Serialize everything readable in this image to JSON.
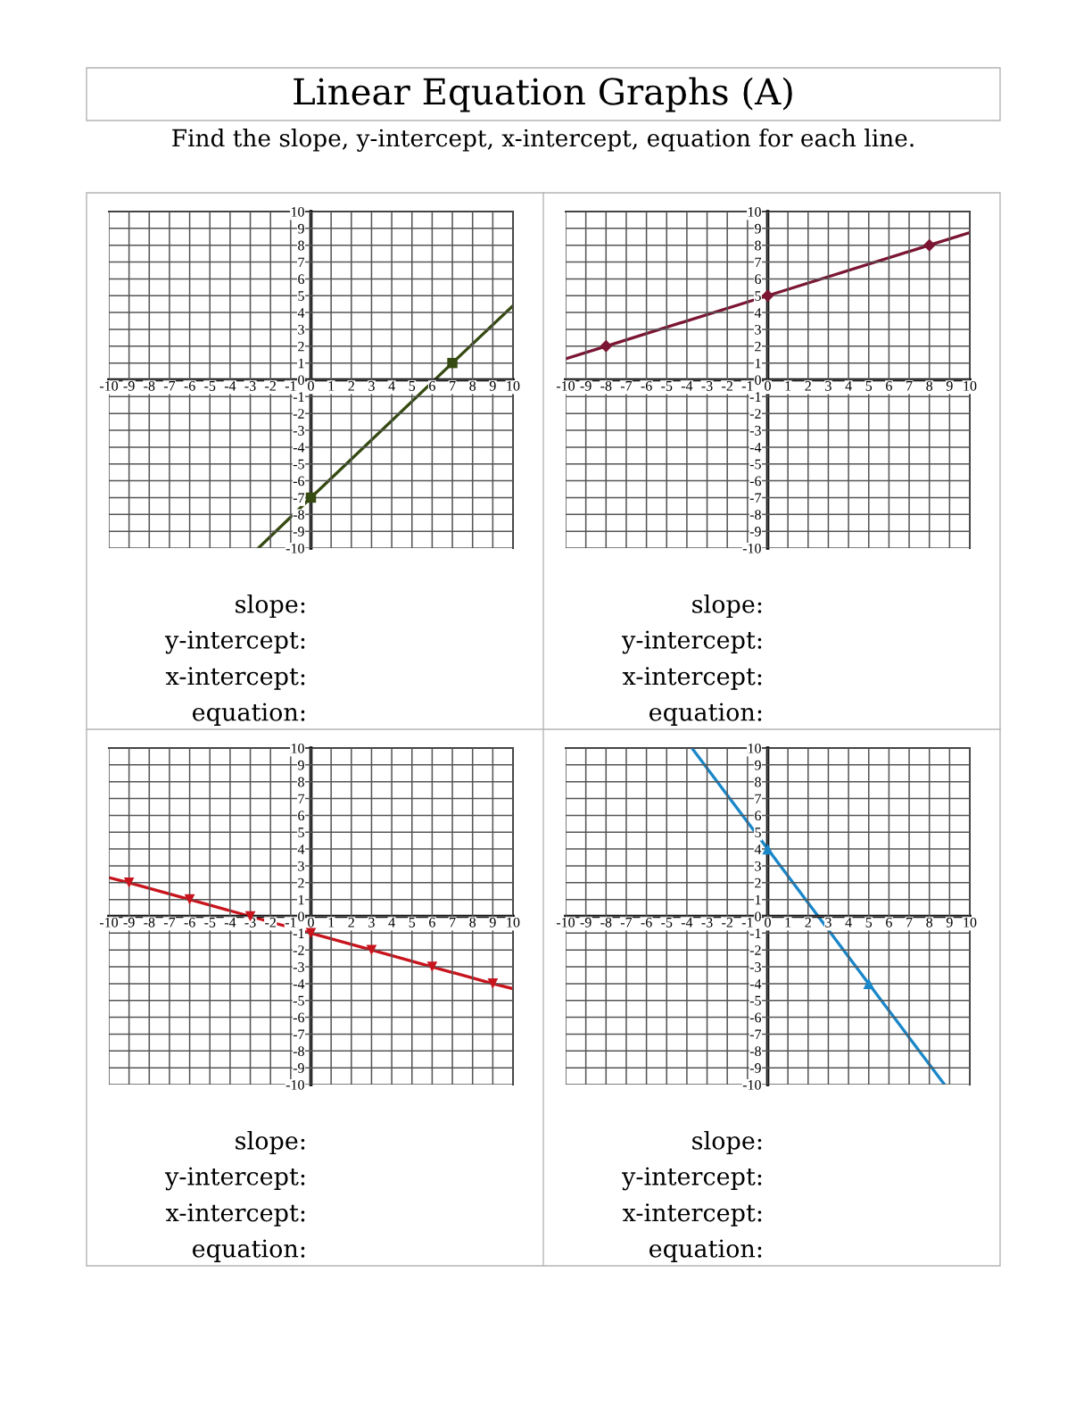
{
  "chart_data": [
    {
      "type": "line",
      "title": "Linear Equation Graphs (A)",
      "subtitle": "Find the slope, y-intercept, x-intercept, equation for each line.",
      "xlim": [
        -10,
        10
      ],
      "ylim": [
        -10,
        10
      ],
      "xticks": [
        -10,
        -9,
        -8,
        -7,
        -6,
        -5,
        -4,
        -3,
        -2,
        -1,
        0,
        1,
        2,
        3,
        4,
        5,
        6,
        7,
        8,
        9,
        10
      ],
      "yticks": [
        -10,
        -9,
        -8,
        -7,
        -6,
        -5,
        -4,
        -3,
        -2,
        -1,
        0,
        1,
        2,
        3,
        4,
        5,
        6,
        7,
        8,
        9,
        10
      ],
      "grid": true,
      "series": [
        {
          "color": "#354a10",
          "x": [
            -2.6,
            0,
            7,
            10
          ],
          "values": [
            -10,
            -7,
            1,
            4.4
          ]
        },
        {
          "type": "scatter",
          "marker": "square",
          "color": "#354a10",
          "x": [
            0,
            7
          ],
          "values": [
            -7,
            1
          ]
        }
      ],
      "annotations": [
        "slope:",
        "y-intercept:",
        "x-intercept:",
        "equation:"
      ]
    },
    {
      "type": "line",
      "xlim": [
        -10,
        10
      ],
      "ylim": [
        -10,
        10
      ],
      "xticks": [
        -10,
        -9,
        -8,
        -7,
        -6,
        -5,
        -4,
        -3,
        -2,
        -1,
        0,
        1,
        2,
        3,
        4,
        5,
        6,
        7,
        8,
        9,
        10
      ],
      "yticks": [
        -10,
        -9,
        -8,
        -7,
        -6,
        -5,
        -4,
        -3,
        -2,
        -1,
        0,
        1,
        2,
        3,
        4,
        5,
        6,
        7,
        8,
        9,
        10
      ],
      "grid": true,
      "series": [
        {
          "color": "#7b1533",
          "x": [
            -10,
            -8,
            0,
            8,
            10
          ],
          "values": [
            1.25,
            2,
            5,
            8,
            8.75
          ]
        },
        {
          "type": "scatter",
          "marker": "diamond",
          "color": "#7b1533",
          "x": [
            -8,
            0,
            8
          ],
          "values": [
            2,
            5,
            8
          ]
        }
      ],
      "annotations": [
        "slope:",
        "y-intercept:",
        "x-intercept:",
        "equation:"
      ]
    },
    {
      "type": "line",
      "xlim": [
        -10,
        10
      ],
      "ylim": [
        -10,
        10
      ],
      "xticks": [
        -10,
        -9,
        -8,
        -7,
        -6,
        -5,
        -4,
        -3,
        -2,
        -1,
        0,
        1,
        2,
        3,
        4,
        5,
        6,
        7,
        8,
        9,
        10
      ],
      "yticks": [
        -10,
        -9,
        -8,
        -7,
        -6,
        -5,
        -4,
        -3,
        -2,
        -1,
        0,
        1,
        2,
        3,
        4,
        5,
        6,
        7,
        8,
        9,
        10
      ],
      "grid": true,
      "series": [
        {
          "color": "#c8141c",
          "x": [
            -10,
            -9,
            -6,
            -3,
            0,
            3,
            6,
            9,
            10
          ],
          "values": [
            2.3,
            2,
            1,
            0,
            -1,
            -2,
            -3,
            -4,
            -4.3
          ]
        },
        {
          "type": "scatter",
          "marker": "triangle-down",
          "color": "#c8141c",
          "x": [
            -9,
            -6,
            -3,
            0,
            3,
            6,
            9
          ],
          "values": [
            2,
            1,
            0,
            -1,
            -2,
            -3,
            -4
          ]
        }
      ],
      "annotations": [
        "slope:",
        "y-intercept:",
        "x-intercept:",
        "equation:"
      ]
    },
    {
      "type": "line",
      "xlim": [
        -10,
        10
      ],
      "ylim": [
        -10,
        10
      ],
      "xticks": [
        -10,
        -9,
        -8,
        -7,
        -6,
        -5,
        -4,
        -3,
        -2,
        -1,
        0,
        1,
        2,
        3,
        4,
        5,
        6,
        7,
        8,
        9,
        10
      ],
      "yticks": [
        -10,
        -9,
        -8,
        -7,
        -6,
        -5,
        -4,
        -3,
        -2,
        -1,
        0,
        1,
        2,
        3,
        4,
        5,
        6,
        7,
        8,
        9,
        10
      ],
      "grid": true,
      "series": [
        {
          "color": "#1a87c9",
          "x": [
            -3.75,
            0,
            5,
            8.75
          ],
          "values": [
            10,
            4,
            -4,
            -10
          ]
        },
        {
          "type": "scatter",
          "marker": "triangle",
          "color": "#1a87c9",
          "x": [
            0,
            5
          ],
          "values": [
            4,
            -4
          ]
        }
      ],
      "annotations": [
        "slope:",
        "y-intercept:",
        "x-intercept:",
        "equation:"
      ]
    }
  ]
}
